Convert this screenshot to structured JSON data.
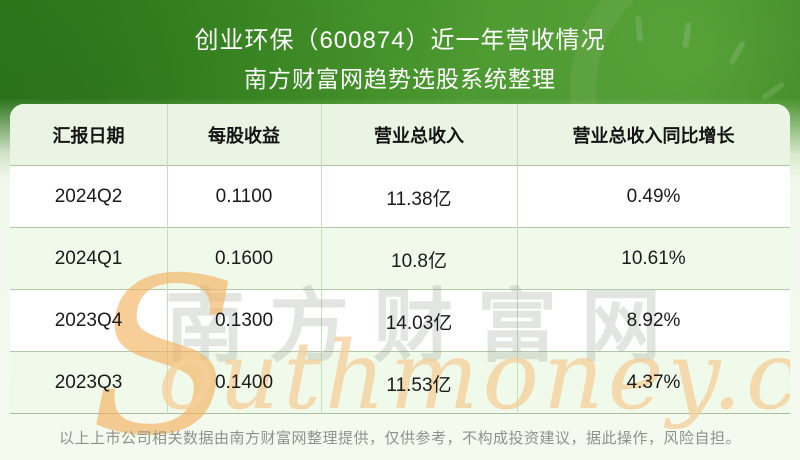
{
  "header": {
    "title": "创业环保（600874）近一年营收情况",
    "subtitle": "南方财富网趋势选股系统整理"
  },
  "chart_data": {
    "type": "table",
    "title": "创业环保（600874）近一年营收情况",
    "subtitle": "南方财富网趋势选股系统整理",
    "columns": [
      "汇报日期",
      "每股收益",
      "营业总收入",
      "营业总收入同比增长"
    ],
    "rows": [
      [
        "2024Q2",
        "0.1100",
        "11.38亿",
        "0.49%"
      ],
      [
        "2024Q1",
        "0.1600",
        "10.8亿",
        "10.61%"
      ],
      [
        "2023Q4",
        "0.1300",
        "14.03亿",
        "8.92%"
      ],
      [
        "2023Q3",
        "0.1400",
        "11.53亿",
        "4.37%"
      ]
    ]
  },
  "watermark": {
    "cn": "南方财富网",
    "en_s": "S",
    "en_rest": "outhmoney.com"
  },
  "footer": {
    "disclaimer": "以上上市公司相关数据由南方财富网整理提供，仅供参考，不构成投资建议，据此操作，风险自担。"
  },
  "colors": {
    "banner_green": "#3d8c25",
    "banner_green_dark": "#307e1d",
    "table_header_bg": "#e9f5e2",
    "row_alt_bg": "#f0faea",
    "row_bg": "#ffffff",
    "h_border": "#b3c7aa",
    "v_border": "#c6ddbb",
    "watermark_orange": "#f3b261",
    "watermark_tan": "#f6ce98",
    "disclaimer_gray": "#8f9289"
  }
}
